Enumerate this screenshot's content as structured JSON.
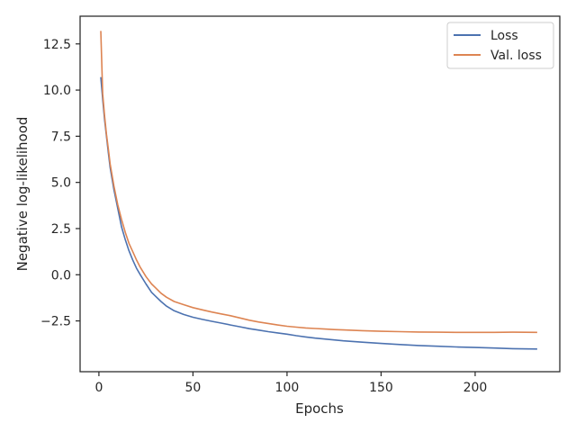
{
  "chart_data": {
    "type": "line",
    "xlabel": "Epochs",
    "ylabel": "Negative log-likelihood",
    "xlim": [
      -10,
      245
    ],
    "ylim": [
      -5.25,
      14.0
    ],
    "xticks": [
      0,
      50,
      100,
      150,
      200
    ],
    "yticks": [
      -2.5,
      0.0,
      2.5,
      5.0,
      7.5,
      10.0,
      12.5
    ],
    "xtick_labels": [
      "0",
      "50",
      "100",
      "150",
      "200"
    ],
    "ytick_labels": [
      "−2.5",
      "0.0",
      "2.5",
      "5.0",
      "7.5",
      "10.0",
      "12.5"
    ],
    "grid": false,
    "legend_position": "top-right",
    "series": [
      {
        "name": "Loss",
        "color": "#4c72b0",
        "x": [
          1,
          2,
          3,
          4,
          5,
          6,
          7,
          8,
          9,
          10,
          12,
          14,
          16,
          18,
          20,
          22,
          25,
          28,
          30,
          33,
          36,
          40,
          45,
          50,
          55,
          60,
          65,
          70,
          75,
          80,
          85,
          90,
          95,
          100,
          105,
          110,
          115,
          120,
          125,
          130,
          140,
          150,
          160,
          170,
          180,
          190,
          200,
          210,
          220,
          233
        ],
        "y": [
          10.7,
          9.5,
          8.4,
          7.5,
          6.6,
          5.8,
          5.2,
          4.6,
          4.1,
          3.6,
          2.6,
          1.9,
          1.3,
          0.8,
          0.35,
          0.0,
          -0.5,
          -0.95,
          -1.15,
          -1.45,
          -1.7,
          -1.95,
          -2.15,
          -2.3,
          -2.42,
          -2.52,
          -2.62,
          -2.72,
          -2.82,
          -2.92,
          -3.0,
          -3.08,
          -3.15,
          -3.22,
          -3.3,
          -3.37,
          -3.43,
          -3.48,
          -3.53,
          -3.58,
          -3.65,
          -3.72,
          -3.78,
          -3.83,
          -3.87,
          -3.91,
          -3.94,
          -3.97,
          -4.0,
          -4.02
        ]
      },
      {
        "name": "Val. loss",
        "color": "#dd8452",
        "x": [
          1,
          2,
          3,
          4,
          5,
          6,
          7,
          8,
          9,
          10,
          12,
          14,
          16,
          18,
          20,
          22,
          25,
          28,
          30,
          33,
          36,
          40,
          45,
          50,
          55,
          60,
          65,
          70,
          75,
          80,
          85,
          90,
          95,
          100,
          105,
          110,
          115,
          120,
          125,
          130,
          140,
          150,
          160,
          170,
          180,
          190,
          200,
          210,
          220,
          233
        ],
        "y": [
          13.2,
          9.8,
          8.6,
          7.6,
          6.8,
          6.0,
          5.4,
          4.8,
          4.3,
          3.8,
          3.0,
          2.3,
          1.7,
          1.25,
          0.8,
          0.4,
          -0.1,
          -0.5,
          -0.7,
          -1.0,
          -1.22,
          -1.45,
          -1.62,
          -1.78,
          -1.9,
          -2.02,
          -2.12,
          -2.22,
          -2.34,
          -2.46,
          -2.56,
          -2.64,
          -2.72,
          -2.79,
          -2.84,
          -2.88,
          -2.91,
          -2.94,
          -2.97,
          -2.99,
          -3.03,
          -3.06,
          -3.08,
          -3.1,
          -3.11,
          -3.12,
          -3.12,
          -3.12,
          -3.11,
          -3.12
        ]
      }
    ]
  }
}
